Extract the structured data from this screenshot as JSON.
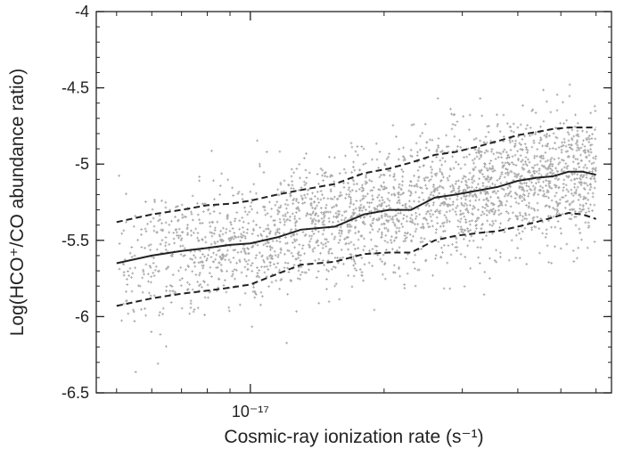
{
  "chart_data": {
    "type": "scatter",
    "title": "",
    "xlabel": "Cosmic-ray ionization rate (s⁻¹)",
    "ylabel": "Log(HCO⁺/CO abundance ratio)",
    "x_scale": "log",
    "xlim": [
      4.5e-18,
      6.5e-17
    ],
    "ylim": [
      -6.5,
      -4
    ],
    "x_ticks": [
      {
        "value": 1e-17,
        "label": "10⁻¹⁷"
      }
    ],
    "y_ticks": [
      {
        "value": -4,
        "label": "-4"
      },
      {
        "value": -4.5,
        "label": "-4.5"
      },
      {
        "value": -5,
        "label": "-5"
      },
      {
        "value": -5.5,
        "label": "-5.5"
      },
      {
        "value": -6,
        "label": "-6"
      },
      {
        "value": -6.5,
        "label": "-6.5"
      }
    ],
    "grid": false,
    "legend": "none",
    "colors": {
      "points": "#a9a9a9",
      "lines": "#222222",
      "axes": "#222222"
    },
    "series": [
      {
        "style": "solid",
        "x": [
          5e-18,
          6e-18,
          7e-18,
          8e-18,
          9e-18,
          1e-17,
          1.15e-17,
          1.3e-17,
          1.55e-17,
          1.8e-17,
          2.05e-17,
          2.3e-17,
          2.6e-17,
          2.9e-17,
          3.3e-17,
          3.6e-17,
          4e-17,
          4.4e-17,
          4.8e-17,
          5.2e-17,
          5.6e-17,
          6e-17
        ],
        "y": [
          -5.65,
          -5.6,
          -5.57,
          -5.55,
          -5.53,
          -5.52,
          -5.48,
          -5.43,
          -5.41,
          -5.33,
          -5.3,
          -5.3,
          -5.22,
          -5.2,
          -5.17,
          -5.15,
          -5.11,
          -5.09,
          -5.08,
          -5.05,
          -5.05,
          -5.07
        ]
      },
      {
        "style": "dashed",
        "x": [
          5e-18,
          6e-18,
          7e-18,
          8e-18,
          9e-18,
          1e-17,
          1.15e-17,
          1.3e-17,
          1.55e-17,
          1.8e-17,
          2.05e-17,
          2.3e-17,
          2.6e-17,
          2.9e-17,
          3.3e-17,
          3.6e-17,
          4e-17,
          4.4e-17,
          4.8e-17,
          5.2e-17,
          5.6e-17,
          6e-17
        ],
        "y": [
          -5.38,
          -5.33,
          -5.3,
          -5.27,
          -5.26,
          -5.24,
          -5.2,
          -5.17,
          -5.13,
          -5.06,
          -5.03,
          -4.99,
          -4.94,
          -4.92,
          -4.88,
          -4.85,
          -4.81,
          -4.79,
          -4.77,
          -4.76,
          -4.76,
          -4.76
        ]
      },
      {
        "style": "dashed",
        "x": [
          5e-18,
          6e-18,
          7e-18,
          8e-18,
          9e-18,
          1e-17,
          1.15e-17,
          1.3e-17,
          1.55e-17,
          1.8e-17,
          2.05e-17,
          2.3e-17,
          2.6e-17,
          2.9e-17,
          3.3e-17,
          3.6e-17,
          4e-17,
          4.4e-17,
          4.8e-17,
          5.2e-17,
          5.6e-17,
          6e-17
        ],
        "y": [
          -5.93,
          -5.88,
          -5.85,
          -5.83,
          -5.81,
          -5.79,
          -5.72,
          -5.66,
          -5.64,
          -5.59,
          -5.58,
          -5.58,
          -5.5,
          -5.47,
          -5.45,
          -5.44,
          -5.41,
          -5.38,
          -5.35,
          -5.32,
          -5.33,
          -5.36
        ]
      }
    ],
    "scatter_cloud": {
      "n_points": 2600,
      "center_x": [
        5e-18,
        1e-17,
        2e-17,
        3e-17,
        4e-17,
        6e-17
      ],
      "center_y": [
        -5.65,
        -5.52,
        -5.31,
        -5.19,
        -5.11,
        -5.07
      ],
      "spread_sigma": 0.21
    }
  }
}
